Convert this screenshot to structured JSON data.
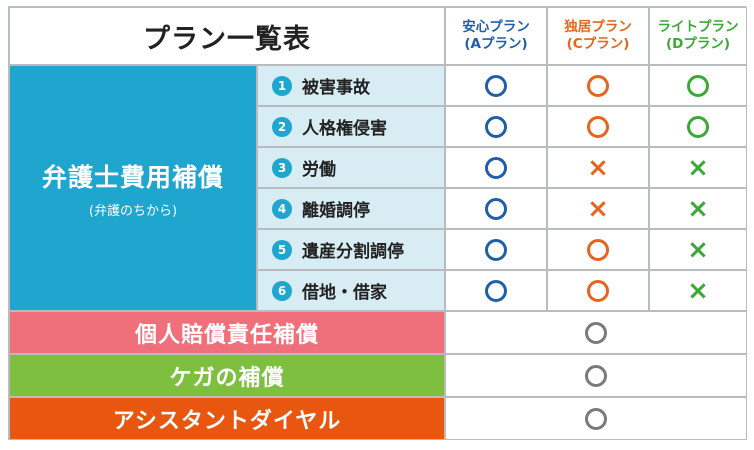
{
  "title": "プラン一覧表",
  "plans": [
    {
      "line1": "安心プラン",
      "line2": "(Aプラン)",
      "color": "#1f5fa9"
    },
    {
      "line1": "独居プラン",
      "line2": "(Cプラン)",
      "color": "#e8641c"
    },
    {
      "line1": "ライトプラン",
      "line2": "(Dプラン)",
      "color": "#3aa935"
    }
  ],
  "category": {
    "title": "弁護士費用補償",
    "subtitle": "(弁護のちから)",
    "color": "#1ea6cf"
  },
  "items": [
    {
      "num": "1",
      "label": "被害事故",
      "marks": [
        "○",
        "○",
        "○"
      ]
    },
    {
      "num": "2",
      "label": "人格権侵害",
      "marks": [
        "○",
        "○",
        "○"
      ]
    },
    {
      "num": "3",
      "label": "労働",
      "marks": [
        "○",
        "×",
        "×"
      ]
    },
    {
      "num": "4",
      "label": "離婚調停",
      "marks": [
        "○",
        "×",
        "×"
      ]
    },
    {
      "num": "5",
      "label": "遺産分割調停",
      "marks": [
        "○",
        "○",
        "×"
      ]
    },
    {
      "num": "6",
      "label": "借地・借家",
      "marks": [
        "○",
        "○",
        "×"
      ]
    }
  ],
  "bands": [
    {
      "label": "個人賠償責任補償",
      "color": "#ef6f7b",
      "mark": "○"
    },
    {
      "label": "ケガの補償",
      "color": "#7fbf3f",
      "mark": "○"
    },
    {
      "label": "アシスタントダイヤル",
      "color": "#e8560f",
      "mark": "○"
    }
  ],
  "colors": {
    "shared_mark": "#7a7a7a",
    "grid": "#b9bcbf",
    "item_bg": "#d7ecf3"
  }
}
